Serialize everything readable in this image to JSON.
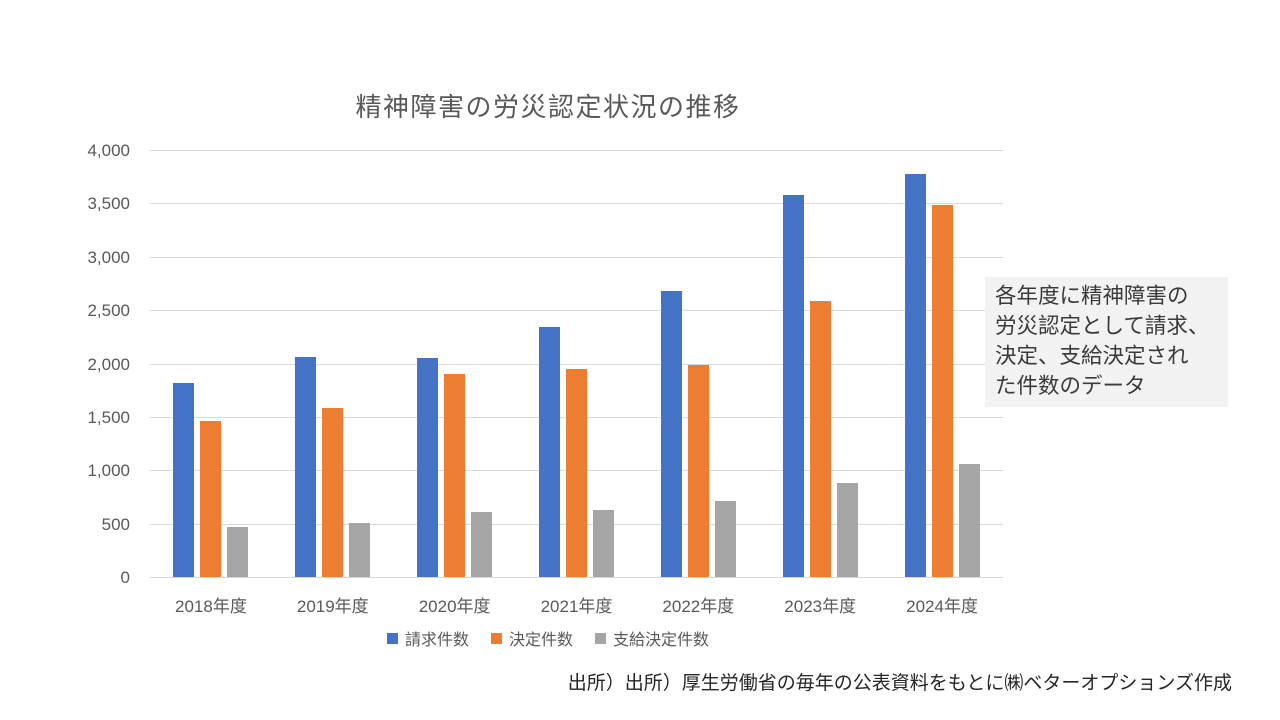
{
  "chart_data": {
    "type": "bar",
    "title": "精神障害の労災認定状況の推移",
    "xlabel": "",
    "ylabel": "",
    "categories": [
      "2018年度",
      "2019年度",
      "2020年度",
      "2021年度",
      "2022年度",
      "2023年度",
      "2024年度"
    ],
    "series": [
      {
        "id": "claims",
        "name": "請求件数",
        "color": "#4472C4",
        "values": [
          1820,
          2060,
          2051,
          2346,
          2683,
          3575,
          3780
        ]
      },
      {
        "id": "decisions",
        "name": "決定件数",
        "color": "#ED7D31",
        "values": [
          1461,
          1586,
          1906,
          1953,
          1986,
          2586,
          3486
        ]
      },
      {
        "id": "payment-decisions",
        "name": "支給決定件数",
        "color": "#A5A5A5",
        "values": [
          465,
          509,
          608,
          629,
          710,
          883,
          1055
        ]
      }
    ],
    "ylim": [
      0,
      4000
    ],
    "ytick_step": 500,
    "ytick_labels": [
      "4,000",
      "3,500",
      "3,000",
      "2,500",
      "2,000",
      "1,500",
      "1,000",
      "500",
      "0"
    ],
    "grid": "horizontal",
    "legend_position": "bottom"
  },
  "annotation": {
    "text": "各年度に精神障害の\n労災認定として請求、\n決定、支給決定され\nた件数のデータ"
  },
  "source": "出所）出所）厚生労働省の毎年の公表資料をもとに㈱ベターオプションズ作成",
  "colors": {
    "background": "#ffffff",
    "gridline": "#d9d9d9",
    "axis_text": "#595959",
    "title_text": "#595959",
    "annotation_bg": "#f2f2f2",
    "annotation_text": "#3a3a3a",
    "source_text": "#262626"
  }
}
